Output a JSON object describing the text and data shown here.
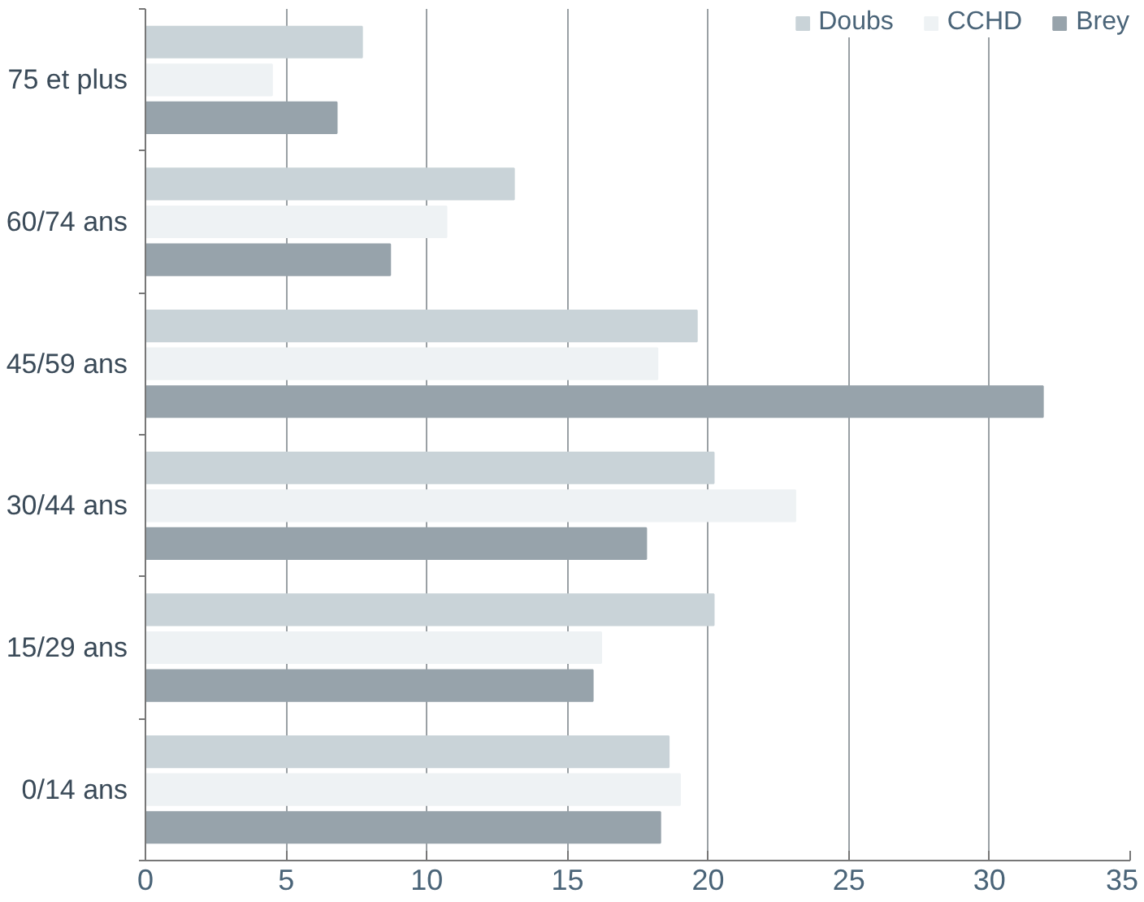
{
  "chart_data": {
    "type": "bar",
    "orientation": "horizontal",
    "categories": [
      "75 et plus",
      "60/74 ans",
      "45/59 ans",
      "30/44 ans",
      "15/29 ans",
      "0/14 ans"
    ],
    "series": [
      {
        "name": "Doubs",
        "color": "#c9d3d8",
        "values": [
          7.7,
          13.1,
          19.6,
          20.2,
          20.2,
          18.6
        ]
      },
      {
        "name": "CCHD",
        "color": "#eef2f4",
        "values": [
          4.5,
          10.7,
          18.2,
          23.1,
          16.2,
          19.0
        ]
      },
      {
        "name": "Brey",
        "color": "#97a3ab",
        "values": [
          6.8,
          8.7,
          31.9,
          17.8,
          15.9,
          18.3
        ]
      }
    ],
    "xlim": [
      0,
      35
    ],
    "xticks": [
      0,
      5,
      10,
      15,
      20,
      25,
      30,
      35
    ],
    "grid": "x",
    "legend": "top right"
  }
}
